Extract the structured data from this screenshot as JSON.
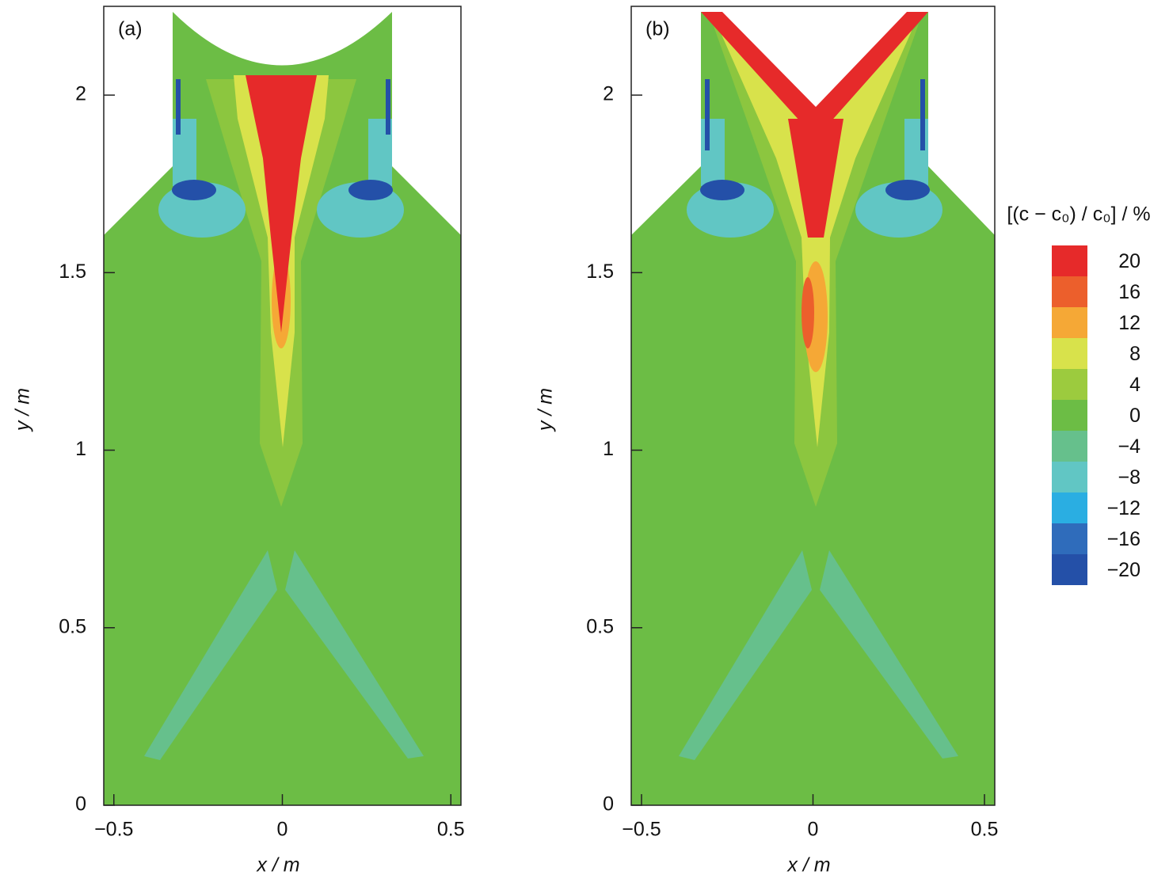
{
  "chart_data": [
    {
      "type": "contour",
      "panel_label": "(a)",
      "xlabel": "x / m",
      "ylabel": "y / m",
      "xlim": [
        -0.53,
        0.53
      ],
      "ylim": [
        0,
        2.25
      ],
      "xticks": [
        {
          "value": -0.5,
          "label": "−0.5"
        },
        0,
        0.5
      ],
      "yticks": [
        0,
        0.5,
        1,
        1.5,
        2
      ]
    },
    {
      "type": "contour",
      "panel_label": "(b)",
      "xlabel": "x / m",
      "ylabel": "y / m",
      "xlim": [
        -0.53,
        0.53
      ],
      "ylim": [
        0,
        2.25
      ],
      "xticks": [
        {
          "value": -0.5,
          "label": "−0.5"
        },
        0,
        0.5
      ],
      "yticks": [
        0,
        0.5,
        1,
        1.5,
        2
      ],
      "colorbar": {
        "title": "[(c − c₀) / c₀] / %",
        "levels": [
          20,
          16,
          12,
          8,
          4,
          0,
          {
            "value": -4,
            "label": "−4"
          },
          {
            "value": -8,
            "label": "−8"
          },
          {
            "value": -12,
            "label": "−12"
          },
          {
            "value": -16,
            "label": "−16"
          },
          {
            "value": -20,
            "label": "−20"
          }
        ],
        "colors": [
          "#e62a2a",
          "#ec5f2c",
          "#f5a836",
          "#d8e24b",
          "#9ccb3e",
          "#6cbd45",
          "#66c08c",
          "#61c6c4",
          "#2aaee2",
          "#2f6cbb",
          "#2450a8"
        ]
      }
    }
  ]
}
